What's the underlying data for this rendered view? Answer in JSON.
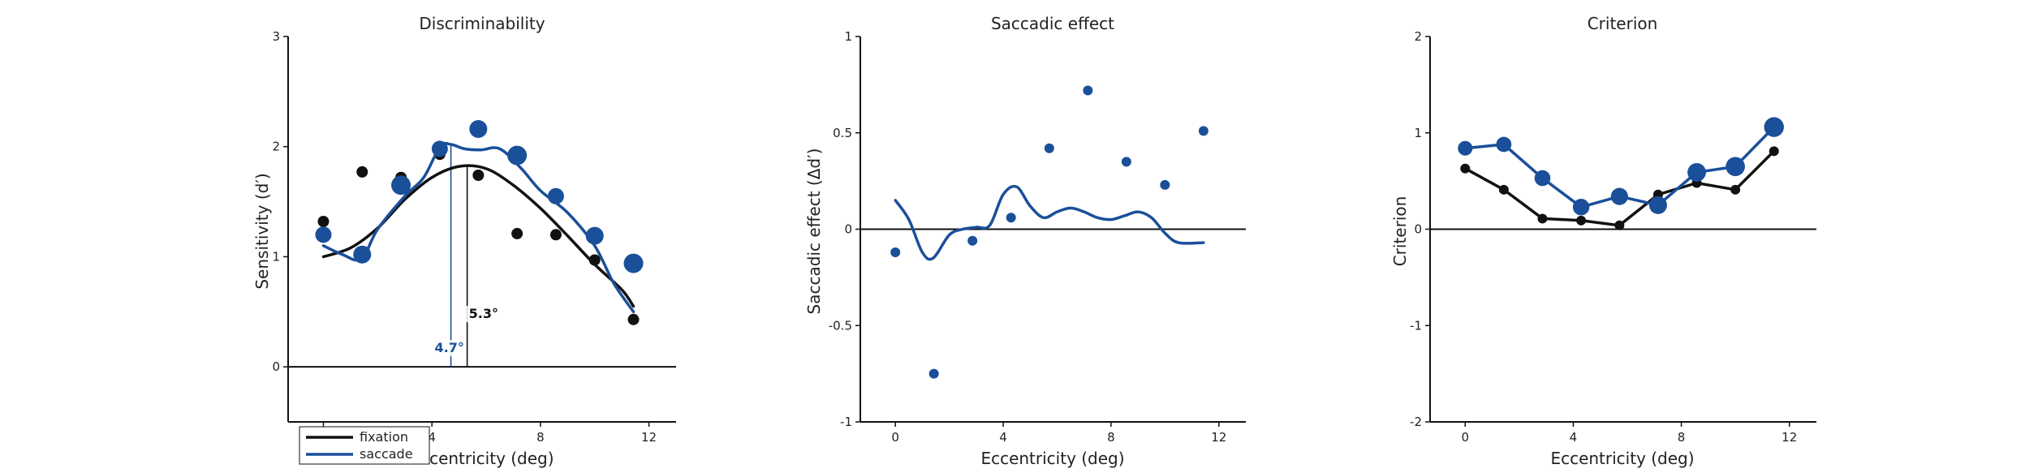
{
  "colors": {
    "fixation": "#111111",
    "saccade": "#1a4f9a"
  },
  "legend": {
    "fixation": "fixation",
    "saccade": "saccade",
    "placement": "lower-left"
  },
  "chart_data": [
    {
      "type": "scatter",
      "title": "Discriminability",
      "xlabel": "Eccentricity (deg)",
      "ylabel": "Sensitivity (d′)",
      "xlim": [
        -1.3,
        13
      ],
      "ylim": [
        -0.5,
        3
      ],
      "xticks": [
        0,
        4,
        8,
        12
      ],
      "xticklabels": [
        "0",
        "4",
        "8",
        "12"
      ],
      "yticks": [
        0,
        1,
        2,
        3
      ],
      "yticklabels": [
        "0",
        "1",
        "2",
        "3"
      ],
      "zero_line": true,
      "series": [
        {
          "name": "fixation",
          "x": [
            0,
            1.43,
            2.86,
            4.29,
            5.71,
            7.14,
            8.57,
            10.0,
            11.43
          ],
          "y": [
            1.32,
            1.77,
            1.72,
            1.93,
            1.74,
            1.21,
            1.2,
            0.97,
            0.43
          ],
          "fit": [
            [
              0,
              1.0
            ],
            [
              1,
              1.08
            ],
            [
              2,
              1.26
            ],
            [
              3,
              1.52
            ],
            [
              4,
              1.72
            ],
            [
              5,
              1.82
            ],
            [
              6,
              1.8
            ],
            [
              7,
              1.65
            ],
            [
              8,
              1.44
            ],
            [
              9,
              1.19
            ],
            [
              10,
              0.93
            ],
            [
              11,
              0.7
            ],
            [
              11.43,
              0.55
            ]
          ]
        },
        {
          "name": "saccade",
          "x": [
            0,
            1.43,
            2.86,
            4.29,
            5.71,
            7.14,
            8.57,
            10.0,
            11.43
          ],
          "y": [
            1.2,
            1.02,
            1.65,
            1.98,
            2.16,
            1.92,
            1.55,
            1.19,
            0.94
          ],
          "fit": [
            [
              0,
              1.1
            ],
            [
              0.7,
              1.02
            ],
            [
              1.4,
              0.98
            ],
            [
              2,
              1.25
            ],
            [
              3,
              1.55
            ],
            [
              3.7,
              1.72
            ],
            [
              4.3,
              2.0
            ],
            [
              4.7,
              2.02
            ],
            [
              5.2,
              1.98
            ],
            [
              5.8,
              1.97
            ],
            [
              6.5,
              1.98
            ],
            [
              7.3,
              1.8
            ],
            [
              8,
              1.6
            ],
            [
              9,
              1.4
            ],
            [
              10,
              1.1
            ],
            [
              10.7,
              0.76
            ],
            [
              11.43,
              0.5
            ]
          ]
        }
      ],
      "peaks": [
        {
          "series": "fixation",
          "x": 5.3,
          "y": 1.82,
          "label": "5.3°"
        },
        {
          "series": "saccade",
          "x": 4.7,
          "y": 2.02,
          "label": "4.7°"
        }
      ]
    },
    {
      "type": "scatter",
      "title": "Saccadic effect",
      "xlabel": "Eccentricity (deg)",
      "ylabel": "Saccadic effect (Δd′)",
      "xlim": [
        -1.3,
        13
      ],
      "ylim": [
        -1,
        1
      ],
      "xticks": [
        0,
        4,
        8,
        12
      ],
      "xticklabels": [
        "0",
        "4",
        "8",
        "12"
      ],
      "yticks": [
        -1,
        -0.5,
        0,
        0.5,
        1
      ],
      "yticklabels": [
        "-1",
        "-0.5",
        "0",
        "0.5",
        "1"
      ],
      "zero_line": true,
      "series": [
        {
          "name": "saccade",
          "x": [
            0,
            1.43,
            2.86,
            4.29,
            5.71,
            7.14,
            8.57,
            10.0,
            11.43
          ],
          "y": [
            -0.12,
            -0.75,
            -0.06,
            0.06,
            0.42,
            0.72,
            0.35,
            0.23,
            0.51
          ],
          "fit": [
            [
              0,
              0.15
            ],
            [
              0.5,
              0.05
            ],
            [
              1.0,
              -0.12
            ],
            [
              1.4,
              -0.15
            ],
            [
              2.0,
              -0.03
            ],
            [
              2.5,
              0.0
            ],
            [
              3.0,
              0.01
            ],
            [
              3.5,
              0.02
            ],
            [
              4.0,
              0.18
            ],
            [
              4.5,
              0.22
            ],
            [
              5.0,
              0.12
            ],
            [
              5.5,
              0.06
            ],
            [
              6.0,
              0.09
            ],
            [
              6.5,
              0.11
            ],
            [
              7.0,
              0.09
            ],
            [
              7.5,
              0.06
            ],
            [
              8.0,
              0.05
            ],
            [
              8.5,
              0.07
            ],
            [
              9.0,
              0.09
            ],
            [
              9.5,
              0.06
            ],
            [
              10.0,
              -0.02
            ],
            [
              10.5,
              -0.07
            ],
            [
              11.43,
              -0.07
            ]
          ]
        }
      ]
    },
    {
      "type": "line",
      "title": "Criterion",
      "xlabel": "Eccentricity (deg)",
      "ylabel": "Criterion",
      "xlim": [
        -1.3,
        13
      ],
      "ylim": [
        -2,
        2
      ],
      "xticks": [
        0,
        4,
        8,
        12
      ],
      "xticklabels": [
        "0",
        "4",
        "8",
        "12"
      ],
      "yticks": [
        -2,
        -1,
        0,
        1,
        2
      ],
      "yticklabels": [
        "-2",
        "-1",
        "0",
        "1",
        "2"
      ],
      "zero_line": true,
      "series": [
        {
          "name": "fixation",
          "x": [
            0,
            1.43,
            2.86,
            4.29,
            5.71,
            7.14,
            8.57,
            10.0,
            11.43
          ],
          "y": [
            0.63,
            0.41,
            0.11,
            0.09,
            0.04,
            0.36,
            0.48,
            0.41,
            0.81
          ]
        },
        {
          "name": "saccade",
          "x": [
            0,
            1.43,
            2.86,
            4.29,
            5.71,
            7.14,
            8.57,
            10.0,
            11.43
          ],
          "y": [
            0.84,
            0.88,
            0.53,
            0.23,
            0.34,
            0.25,
            0.59,
            0.65,
            1.06
          ]
        }
      ]
    }
  ]
}
